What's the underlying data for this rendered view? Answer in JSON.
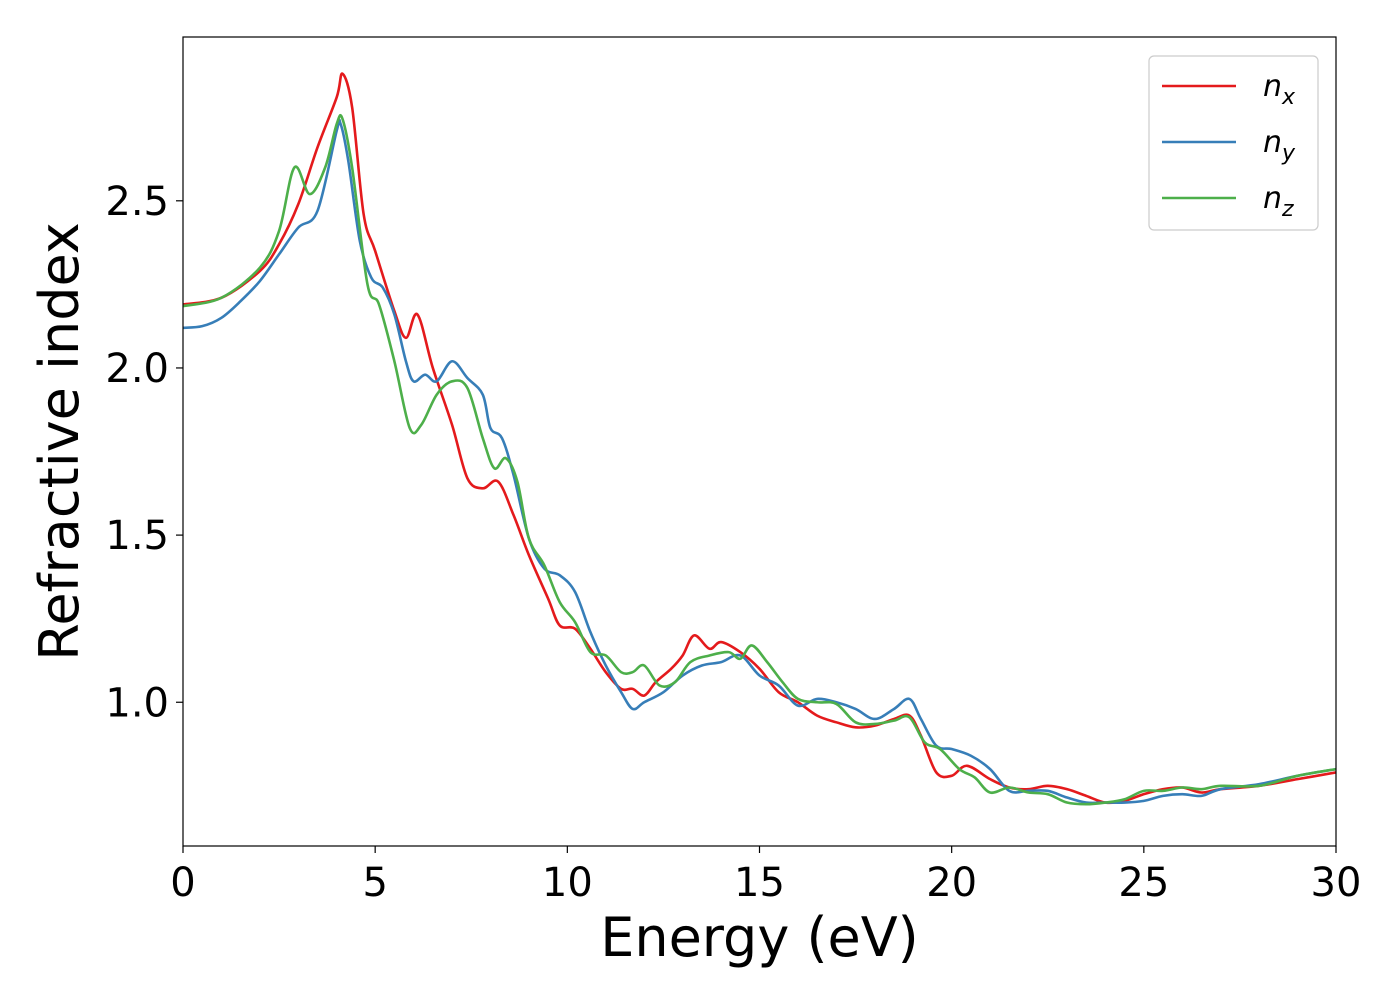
{
  "chart_data": {
    "type": "line",
    "title": "",
    "xlabel": "Energy (eV)",
    "ylabel": "Refractive index",
    "xlim": [
      0,
      30
    ],
    "ylim": [
      0.57,
      2.99
    ],
    "xticks": [
      0,
      5,
      10,
      15,
      20,
      25,
      30
    ],
    "xtick_labels": [
      "0",
      "5",
      "10",
      "15",
      "20",
      "25",
      "30"
    ],
    "yticks": [
      1.0,
      1.5,
      2.0,
      2.5
    ],
    "ytick_labels": [
      "1.0",
      "1.5",
      "2.0",
      "2.5"
    ],
    "grid": false,
    "legend_position": "top-right",
    "series": [
      {
        "name": "n",
        "subscript": "x",
        "color": "#e41a1c",
        "points": [
          [
            0,
            2.19
          ],
          [
            1,
            2.21
          ],
          [
            2,
            2.29
          ],
          [
            2.5,
            2.37
          ],
          [
            3,
            2.49
          ],
          [
            3.5,
            2.66
          ],
          [
            4,
            2.81
          ],
          [
            4.15,
            2.88
          ],
          [
            4.4,
            2.78
          ],
          [
            4.7,
            2.46
          ],
          [
            5,
            2.35
          ],
          [
            5.5,
            2.17
          ],
          [
            5.8,
            2.09
          ],
          [
            6.1,
            2.16
          ],
          [
            6.5,
            2.0
          ],
          [
            7,
            1.83
          ],
          [
            7.4,
            1.67
          ],
          [
            7.8,
            1.64
          ],
          [
            8.2,
            1.66
          ],
          [
            8.6,
            1.56
          ],
          [
            9,
            1.44
          ],
          [
            9.5,
            1.31
          ],
          [
            9.8,
            1.23
          ],
          [
            10.2,
            1.22
          ],
          [
            10.6,
            1.16
          ],
          [
            11,
            1.09
          ],
          [
            11.4,
            1.04
          ],
          [
            11.7,
            1.04
          ],
          [
            12,
            1.02
          ],
          [
            12.3,
            1.06
          ],
          [
            12.7,
            1.1
          ],
          [
            13,
            1.14
          ],
          [
            13.3,
            1.2
          ],
          [
            13.7,
            1.16
          ],
          [
            14,
            1.18
          ],
          [
            14.5,
            1.15
          ],
          [
            15,
            1.1
          ],
          [
            15.5,
            1.03
          ],
          [
            16,
            1.0
          ],
          [
            16.5,
            0.96
          ],
          [
            17,
            0.94
          ],
          [
            17.5,
            0.925
          ],
          [
            18,
            0.93
          ],
          [
            18.5,
            0.95
          ],
          [
            18.9,
            0.96
          ],
          [
            19.2,
            0.9
          ],
          [
            19.6,
            0.79
          ],
          [
            20,
            0.78
          ],
          [
            20.4,
            0.81
          ],
          [
            21,
            0.77
          ],
          [
            21.5,
            0.745
          ],
          [
            22,
            0.74
          ],
          [
            22.5,
            0.75
          ],
          [
            23,
            0.74
          ],
          [
            23.5,
            0.72
          ],
          [
            24,
            0.7
          ],
          [
            24.5,
            0.705
          ],
          [
            25,
            0.725
          ],
          [
            25.5,
            0.74
          ],
          [
            26,
            0.745
          ],
          [
            26.5,
            0.73
          ],
          [
            27,
            0.74
          ],
          [
            28,
            0.75
          ],
          [
            29,
            0.77
          ],
          [
            30,
            0.79
          ]
        ]
      },
      {
        "name": "n",
        "subscript": "y",
        "color": "#377eb8",
        "points": [
          [
            0,
            2.12
          ],
          [
            0.5,
            2.125
          ],
          [
            1,
            2.15
          ],
          [
            1.5,
            2.2
          ],
          [
            2,
            2.26
          ],
          [
            2.5,
            2.34
          ],
          [
            3,
            2.42
          ],
          [
            3.5,
            2.47
          ],
          [
            4,
            2.71
          ],
          [
            4.1,
            2.73
          ],
          [
            4.3,
            2.62
          ],
          [
            4.6,
            2.38
          ],
          [
            4.9,
            2.27
          ],
          [
            5.2,
            2.24
          ],
          [
            5.5,
            2.16
          ],
          [
            5.8,
            2.02
          ],
          [
            6,
            1.96
          ],
          [
            6.3,
            1.98
          ],
          [
            6.6,
            1.96
          ],
          [
            7,
            2.02
          ],
          [
            7.4,
            1.97
          ],
          [
            7.8,
            1.92
          ],
          [
            8,
            1.82
          ],
          [
            8.3,
            1.79
          ],
          [
            8.6,
            1.68
          ],
          [
            9,
            1.49
          ],
          [
            9.4,
            1.4
          ],
          [
            9.8,
            1.38
          ],
          [
            10.2,
            1.33
          ],
          [
            10.6,
            1.21
          ],
          [
            11,
            1.11
          ],
          [
            11.4,
            1.03
          ],
          [
            11.7,
            0.98
          ],
          [
            12,
            1.0
          ],
          [
            12.5,
            1.03
          ],
          [
            13,
            1.08
          ],
          [
            13.5,
            1.11
          ],
          [
            14,
            1.12
          ],
          [
            14.5,
            1.14
          ],
          [
            15,
            1.08
          ],
          [
            15.5,
            1.05
          ],
          [
            16,
            0.99
          ],
          [
            16.5,
            1.01
          ],
          [
            17,
            1.0
          ],
          [
            17.5,
            0.98
          ],
          [
            18,
            0.95
          ],
          [
            18.5,
            0.98
          ],
          [
            18.9,
            1.01
          ],
          [
            19.2,
            0.95
          ],
          [
            19.6,
            0.87
          ],
          [
            20,
            0.86
          ],
          [
            20.5,
            0.84
          ],
          [
            21,
            0.8
          ],
          [
            21.5,
            0.735
          ],
          [
            22,
            0.735
          ],
          [
            22.5,
            0.735
          ],
          [
            23,
            0.715
          ],
          [
            23.5,
            0.7
          ],
          [
            24,
            0.7
          ],
          [
            24.5,
            0.7
          ],
          [
            25,
            0.705
          ],
          [
            25.5,
            0.72
          ],
          [
            26,
            0.725
          ],
          [
            26.5,
            0.72
          ],
          [
            27,
            0.74
          ],
          [
            28,
            0.755
          ],
          [
            29,
            0.78
          ],
          [
            30,
            0.8
          ]
        ]
      },
      {
        "name": "n",
        "subscript": "z",
        "color": "#4daf4a",
        "points": [
          [
            0,
            2.185
          ],
          [
            1,
            2.21
          ],
          [
            2,
            2.3
          ],
          [
            2.5,
            2.41
          ],
          [
            2.9,
            2.6
          ],
          [
            3.3,
            2.52
          ],
          [
            3.7,
            2.6
          ],
          [
            4,
            2.73
          ],
          [
            4.15,
            2.745
          ],
          [
            4.4,
            2.6
          ],
          [
            4.8,
            2.25
          ],
          [
            5.1,
            2.19
          ],
          [
            5.5,
            2.02
          ],
          [
            5.9,
            1.82
          ],
          [
            6.2,
            1.83
          ],
          [
            6.6,
            1.92
          ],
          [
            7,
            1.96
          ],
          [
            7.4,
            1.94
          ],
          [
            7.8,
            1.79
          ],
          [
            8.1,
            1.7
          ],
          [
            8.4,
            1.73
          ],
          [
            8.7,
            1.66
          ],
          [
            9,
            1.49
          ],
          [
            9.4,
            1.41
          ],
          [
            9.8,
            1.3
          ],
          [
            10.2,
            1.24
          ],
          [
            10.6,
            1.15
          ],
          [
            11,
            1.14
          ],
          [
            11.4,
            1.09
          ],
          [
            11.7,
            1.09
          ],
          [
            12,
            1.11
          ],
          [
            12.4,
            1.05
          ],
          [
            12.8,
            1.06
          ],
          [
            13.2,
            1.12
          ],
          [
            13.7,
            1.14
          ],
          [
            14.2,
            1.15
          ],
          [
            14.5,
            1.13
          ],
          [
            14.8,
            1.17
          ],
          [
            15.2,
            1.12
          ],
          [
            15.6,
            1.06
          ],
          [
            16,
            1.01
          ],
          [
            16.5,
            1.0
          ],
          [
            17,
            0.995
          ],
          [
            17.5,
            0.94
          ],
          [
            18,
            0.935
          ],
          [
            18.5,
            0.945
          ],
          [
            18.9,
            0.955
          ],
          [
            19.3,
            0.88
          ],
          [
            19.7,
            0.86
          ],
          [
            20.2,
            0.8
          ],
          [
            20.6,
            0.775
          ],
          [
            21,
            0.73
          ],
          [
            21.5,
            0.745
          ],
          [
            22,
            0.73
          ],
          [
            22.5,
            0.725
          ],
          [
            23,
            0.7
          ],
          [
            23.5,
            0.695
          ],
          [
            24,
            0.7
          ],
          [
            24.5,
            0.71
          ],
          [
            25,
            0.735
          ],
          [
            25.5,
            0.735
          ],
          [
            26,
            0.745
          ],
          [
            26.5,
            0.74
          ],
          [
            27,
            0.75
          ],
          [
            28,
            0.75
          ],
          [
            29,
            0.78
          ],
          [
            30,
            0.8
          ]
        ]
      }
    ]
  }
}
